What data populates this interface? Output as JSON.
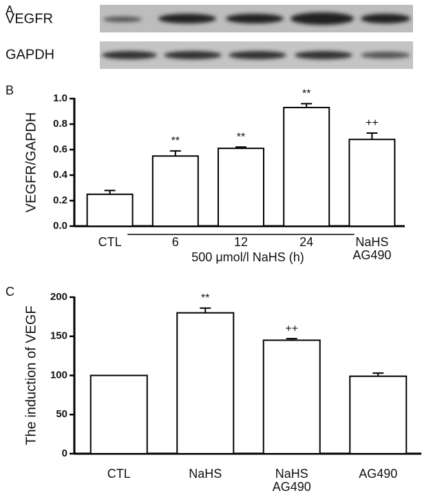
{
  "panel_labels": [
    "A",
    "B",
    "C"
  ],
  "blot_labels": [
    "VEGFR",
    "GAPDH"
  ],
  "chart_data": [
    {
      "type": "bar",
      "ylabel": "VEGFR/GAPDH",
      "categories": [
        "CTL",
        "6",
        "12",
        "24",
        "NaHS\nAG490"
      ],
      "group_label": "500 μmol/l NaHS (h)",
      "values": [
        0.25,
        0.55,
        0.61,
        0.93,
        0.68
      ],
      "errors": [
        0.03,
        0.04,
        0.01,
        0.03,
        0.05
      ],
      "annotations": [
        null,
        "**",
        "**",
        "**",
        "++"
      ],
      "color": "#ffffff",
      "ylim": [
        0,
        1.0
      ],
      "yticks": [
        {
          "value": 0,
          "label": "0.0"
        },
        0.2,
        0.4,
        0.6,
        0.8,
        {
          "value": 1,
          "label": "1.0"
        }
      ]
    },
    {
      "type": "bar",
      "ylabel": "The induction of VEGF",
      "categories": [
        "CTL",
        "NaHS",
        "NaHS\nAG490",
        "AG490"
      ],
      "values": [
        100,
        180,
        145,
        99
      ],
      "errors": [
        0,
        6,
        2,
        4
      ],
      "annotations": [
        null,
        "**",
        "++",
        null
      ],
      "color": "#ffffff",
      "ylim": [
        0,
        200
      ],
      "yticks": [
        0,
        50,
        100,
        150,
        200
      ]
    }
  ]
}
